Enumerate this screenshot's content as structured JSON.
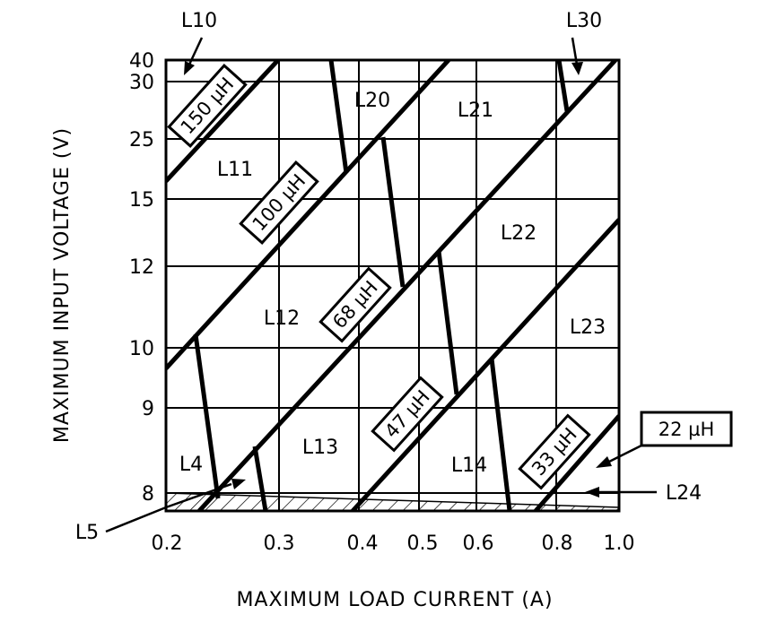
{
  "chart_data": {
    "type": "line",
    "title": "",
    "xlabel": "MAXIMUM LOAD CURRENT (A)",
    "ylabel": "MAXIMUM INPUT VOLTAGE (V)",
    "x_ticks": [
      {
        "value": 0.2,
        "label": "0.2"
      },
      {
        "value": 0.3,
        "label": "0.3"
      },
      {
        "value": 0.4,
        "label": "0.4"
      },
      {
        "value": 0.5,
        "label": "0.5"
      },
      {
        "value": 0.6,
        "label": "0.6"
      },
      {
        "value": 0.8,
        "label": "0.8"
      },
      {
        "value": 1.0,
        "label": "1.0"
      }
    ],
    "y_ticks": [
      {
        "value": 40,
        "label": "40"
      },
      {
        "value": 30,
        "label": "30"
      },
      {
        "value": 25,
        "label": "25"
      },
      {
        "value": 15,
        "label": "15"
      },
      {
        "value": 12,
        "label": "12"
      },
      {
        "value": 10,
        "label": "10"
      },
      {
        "value": 9,
        "label": "9"
      },
      {
        "value": 8,
        "label": "8"
      }
    ],
    "inductance_labels": [
      "150 µH",
      "100 µH",
      "68 µH",
      "47 µH",
      "33 µH",
      "22 µH"
    ],
    "regions": [
      {
        "name": "L10"
      },
      {
        "name": "L30"
      },
      {
        "name": "L20"
      },
      {
        "name": "L21"
      },
      {
        "name": "L11"
      },
      {
        "name": "L22"
      },
      {
        "name": "L12"
      },
      {
        "name": "L23"
      },
      {
        "name": "L13"
      },
      {
        "name": "L4"
      },
      {
        "name": "L14"
      },
      {
        "name": "L5"
      },
      {
        "name": "L24"
      }
    ]
  }
}
